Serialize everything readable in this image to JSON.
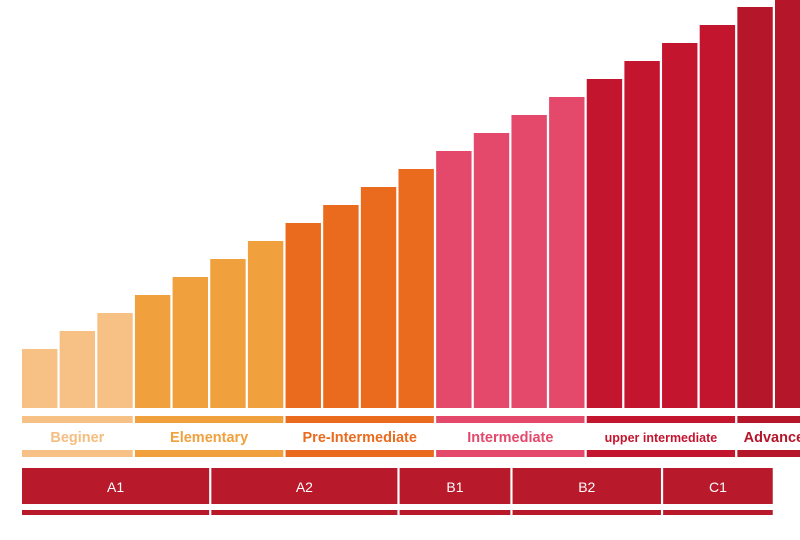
{
  "chart_data": {
    "type": "bar",
    "values": [
      59,
      77,
      95,
      113,
      131,
      149,
      167,
      185,
      203,
      221,
      239,
      257,
      275,
      293,
      311,
      329,
      347,
      365,
      383,
      401,
      419
    ],
    "bar_group": [
      "beginner",
      "beginner",
      "beginner",
      "elementary",
      "elementary",
      "elementary",
      "elementary",
      "pre-intermediate",
      "pre-intermediate",
      "pre-intermediate",
      "pre-intermediate",
      "intermediate",
      "intermediate",
      "intermediate",
      "intermediate",
      "upper-intermediate",
      "upper-intermediate",
      "upper-intermediate",
      "upper-intermediate",
      "advance",
      "advance"
    ]
  },
  "levels": [
    {
      "key": "beginner",
      "label": "Beginer",
      "color": "#F7C084",
      "text_color": "#F5BD80",
      "bars": 3
    },
    {
      "key": "elementary",
      "label": "Elementary",
      "color": "#F0A03C",
      "text_color": "#F0A03C",
      "bars": 4
    },
    {
      "key": "pre-intermediate",
      "label": "Pre-Intermediate",
      "color": "#EA6B1E",
      "text_color": "#EA6B1E",
      "bars": 4
    },
    {
      "key": "intermediate",
      "label": "Intermediate",
      "color": "#E4486A",
      "text_color": "#E4486A",
      "bars": 4
    },
    {
      "key": "upper-intermediate",
      "label": "upper intermediate",
      "color": "#C4152F",
      "text_color": "#C4152F",
      "bars": 4
    },
    {
      "key": "advance",
      "label": "Advance",
      "color": "#B5162A",
      "text_color": "#B5162A",
      "bars": 2
    }
  ],
  "cefr": [
    {
      "label": "A1",
      "bars": 5,
      "color": "#B81A2C"
    },
    {
      "label": "A2",
      "bars": 5,
      "color": "#B81A2C"
    },
    {
      "label": "B1",
      "bars": 3,
      "color": "#B81A2C"
    },
    {
      "label": "B2",
      "bars": 4,
      "color": "#B81A2C"
    },
    {
      "label": "C1",
      "bars": 3,
      "color": "#B81A2C"
    }
  ]
}
